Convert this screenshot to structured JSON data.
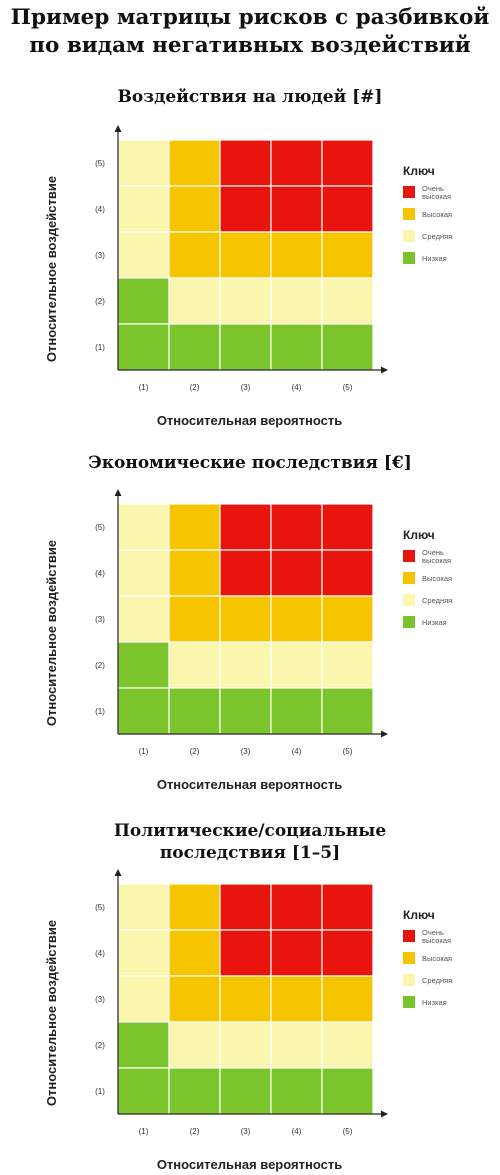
{
  "page": {
    "title_lines": [
      "Пример матрицы рисков с разбивкой",
      "по видам негативных воздействий"
    ]
  },
  "colors": {
    "red": "#e8150e",
    "orange": "#f7c400",
    "yellow": "#fbf6ad",
    "green": "#7cc42c",
    "grid_line": "#ffffff",
    "axis": "#222222"
  },
  "legend": {
    "title": "Ключ",
    "items": [
      {
        "level": "very_high",
        "color": "#e8150e",
        "label_lines": [
          "Очень",
          "высокая"
        ]
      },
      {
        "level": "high",
        "color": "#f7c400",
        "label_lines": [
          "Высокая"
        ]
      },
      {
        "level": "medium",
        "color": "#fbf6ad",
        "label_lines": [
          "Средняя"
        ]
      },
      {
        "level": "low",
        "color": "#7cc42c",
        "label_lines": [
          "Низкая"
        ]
      }
    ]
  },
  "chart_data": [
    {
      "type": "heatmap",
      "title_lines": [
        "Воздействия на людей [#]"
      ],
      "xlabel": "Относительная вероятность",
      "ylabel": "Относительное воздействие",
      "x_ticks": [
        "(1)",
        "(2)",
        "(3)",
        "(4)",
        "(5)"
      ],
      "y_ticks": [
        "(1)",
        "(2)",
        "(3)",
        "(4)",
        "(5)"
      ],
      "matrix_rows_top_to_bottom": [
        [
          "medium",
          "high",
          "very_high",
          "very_high",
          "very_high"
        ],
        [
          "medium",
          "high",
          "very_high",
          "very_high",
          "very_high"
        ],
        [
          "medium",
          "high",
          "high",
          "high",
          "high"
        ],
        [
          "low",
          "medium",
          "medium",
          "medium",
          "medium"
        ],
        [
          "low",
          "low",
          "low",
          "low",
          "low"
        ]
      ]
    },
    {
      "type": "heatmap",
      "title_lines": [
        "Экономические последствия [€]"
      ],
      "xlabel": "Относительная вероятность",
      "ylabel": "Относительное воздействие",
      "x_ticks": [
        "(1)",
        "(2)",
        "(3)",
        "(4)",
        "(5)"
      ],
      "y_ticks": [
        "(1)",
        "(2)",
        "(3)",
        "(4)",
        "(5)"
      ],
      "matrix_rows_top_to_bottom": [
        [
          "medium",
          "high",
          "very_high",
          "very_high",
          "very_high"
        ],
        [
          "medium",
          "high",
          "very_high",
          "very_high",
          "very_high"
        ],
        [
          "medium",
          "high",
          "high",
          "high",
          "high"
        ],
        [
          "low",
          "medium",
          "medium",
          "medium",
          "medium"
        ],
        [
          "low",
          "low",
          "low",
          "low",
          "low"
        ]
      ]
    },
    {
      "type": "heatmap",
      "title_lines": [
        "Политические/социальные",
        "последствия [1–5]"
      ],
      "xlabel": "Относительная вероятность",
      "ylabel": "Относительное воздействие",
      "x_ticks": [
        "(1)",
        "(2)",
        "(3)",
        "(4)",
        "(5)"
      ],
      "y_ticks": [
        "(1)",
        "(2)",
        "(3)",
        "(4)",
        "(5)"
      ],
      "matrix_rows_top_to_bottom": [
        [
          "medium",
          "high",
          "very_high",
          "very_high",
          "very_high"
        ],
        [
          "medium",
          "high",
          "very_high",
          "very_high",
          "very_high"
        ],
        [
          "medium",
          "high",
          "high",
          "high",
          "high"
        ],
        [
          "low",
          "medium",
          "medium",
          "medium",
          "medium"
        ],
        [
          "low",
          "low",
          "low",
          "low",
          "low"
        ]
      ]
    }
  ]
}
